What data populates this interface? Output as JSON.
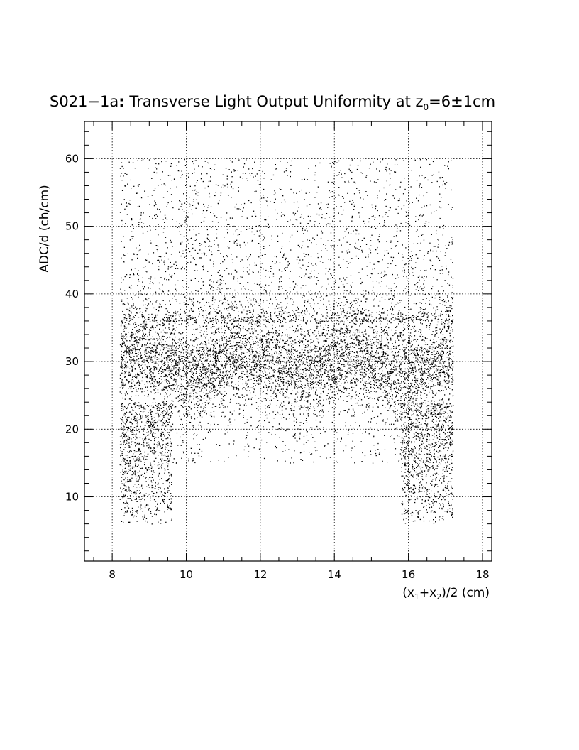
{
  "chart_data": {
    "type": "scatter",
    "title": {
      "main": "S021−1a",
      "colon": ":",
      "text": " Transverse Light Output Uniformity at z",
      "sub": "0",
      "tail": "=6±1cm"
    },
    "xlabel": {
      "parts": [
        {
          "t": "(x",
          "sub": false
        },
        {
          "t": "1",
          "sub": true
        },
        {
          "t": "+x",
          "sub": false
        },
        {
          "t": "2",
          "sub": true
        },
        {
          "t": ")/2 (cm)",
          "sub": false
        }
      ]
    },
    "ylabel": "ADC/d (ch/cm)",
    "xlim": [
      7.25,
      18.25
    ],
    "ylim": [
      0.5,
      65.5
    ],
    "xticks": [
      8,
      10,
      12,
      14,
      16,
      18
    ],
    "yticks": [
      10,
      20,
      30,
      40,
      50,
      60
    ],
    "xtick_labels": [
      "8",
      "10",
      "12",
      "14",
      "16",
      "18"
    ],
    "ytick_labels": [
      "10",
      "20",
      "30",
      "40",
      "50",
      "60"
    ],
    "grid": true,
    "grid_style": "dotted",
    "point_color": "#000000",
    "distribution": {
      "x_range": [
        8.2,
        17.2
      ],
      "y_range": [
        4,
        60
      ],
      "core_y_mean": 30,
      "core_y_spread": [
        22,
        38
      ],
      "tail_low_x_ranges": [
        [
          8.2,
          9.6
        ],
        [
          15.8,
          17.2
        ]
      ],
      "tail_low_min_y": 6
    }
  }
}
